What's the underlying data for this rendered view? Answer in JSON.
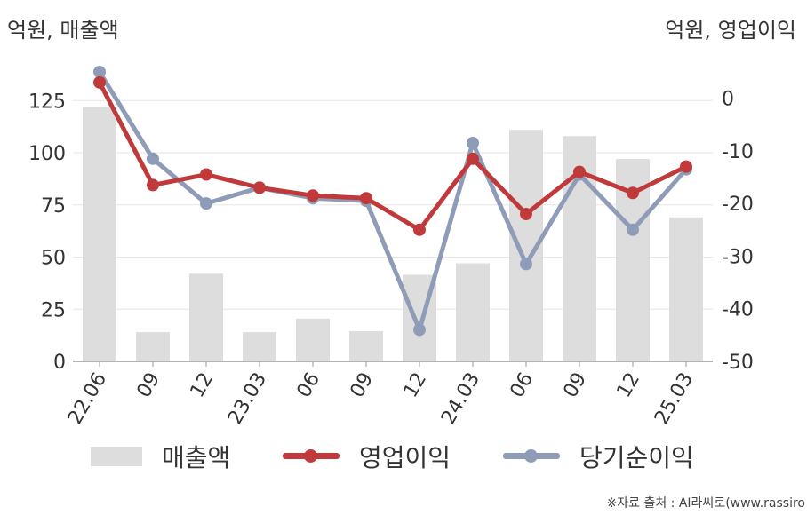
{
  "units": {
    "left": "억원, 매출액",
    "right": "억원, 영업이익"
  },
  "legend": {
    "bar": "매출액",
    "line1": "영업이익",
    "line2": "당기순이익"
  },
  "source": "※자료 출처 : AI라씨로(www.rassiro",
  "colors": {
    "bar": "#dddddd",
    "operating": "#c0393b",
    "net": "#8f9cb8",
    "axis": "#999999",
    "grid": "#e6e6e6"
  },
  "chart_data": {
    "type": "bar+line",
    "categories": [
      "22.06",
      "09",
      "12",
      "23.03",
      "06",
      "09",
      "12",
      "24.03",
      "06",
      "09",
      "12",
      "25.03"
    ],
    "left_axis": {
      "label": "억원, 매출액",
      "ylim": [
        0,
        140
      ],
      "ticks": [
        0,
        25,
        50,
        75,
        100,
        125
      ]
    },
    "right_axis": {
      "label": "억원, 영업이익",
      "ylim": [
        -50,
        5.5
      ],
      "ticks": [
        -50,
        -40,
        -30,
        -20,
        -10,
        0
      ]
    },
    "grid": true,
    "legend_position": "bottom",
    "series": [
      {
        "name": "매출액",
        "type": "bar",
        "axis": "left",
        "values": [
          122,
          14,
          42,
          14,
          20.5,
          14.5,
          41.5,
          47,
          111,
          108,
          97,
          69
        ]
      },
      {
        "name": "영업이익",
        "type": "line",
        "axis": "right",
        "values": [
          3,
          -16.5,
          -14.5,
          -17,
          -18.5,
          -19,
          -25,
          -11.5,
          -22,
          -14,
          -18,
          -13
        ]
      },
      {
        "name": "당기순이익",
        "type": "line",
        "axis": "right",
        "values": [
          5,
          -11.5,
          -20,
          -17,
          -19,
          -19.5,
          -44,
          -8.5,
          -31.5,
          -14.5,
          -25,
          -13.5
        ]
      }
    ]
  }
}
